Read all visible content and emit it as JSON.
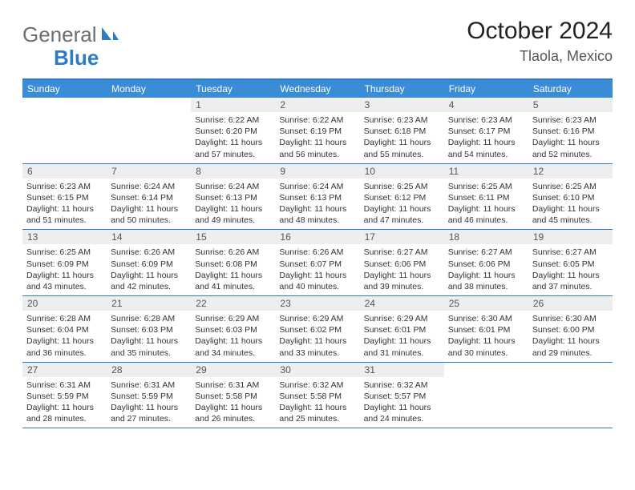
{
  "logo": {
    "text1": "General",
    "text2": "Blue",
    "color_gray": "#6b6f73",
    "color_blue": "#2d7bc4"
  },
  "title": {
    "month_year": "October 2024",
    "location": "Tlaola, Mexico"
  },
  "weekdays": [
    "Sunday",
    "Monday",
    "Tuesday",
    "Wednesday",
    "Thursday",
    "Friday",
    "Saturday"
  ],
  "colors": {
    "header_bar": "#3a8cd6",
    "border": "#2d7bc4",
    "daynum_bg": "#eceeef"
  },
  "weeks": [
    [
      {
        "empty": true
      },
      {
        "empty": true
      },
      {
        "num": "1",
        "sunrise": "Sunrise: 6:22 AM",
        "sunset": "Sunset: 6:20 PM",
        "daylight": "Daylight: 11 hours and 57 minutes."
      },
      {
        "num": "2",
        "sunrise": "Sunrise: 6:22 AM",
        "sunset": "Sunset: 6:19 PM",
        "daylight": "Daylight: 11 hours and 56 minutes."
      },
      {
        "num": "3",
        "sunrise": "Sunrise: 6:23 AM",
        "sunset": "Sunset: 6:18 PM",
        "daylight": "Daylight: 11 hours and 55 minutes."
      },
      {
        "num": "4",
        "sunrise": "Sunrise: 6:23 AM",
        "sunset": "Sunset: 6:17 PM",
        "daylight": "Daylight: 11 hours and 54 minutes."
      },
      {
        "num": "5",
        "sunrise": "Sunrise: 6:23 AM",
        "sunset": "Sunset: 6:16 PM",
        "daylight": "Daylight: 11 hours and 52 minutes."
      }
    ],
    [
      {
        "num": "6",
        "sunrise": "Sunrise: 6:23 AM",
        "sunset": "Sunset: 6:15 PM",
        "daylight": "Daylight: 11 hours and 51 minutes."
      },
      {
        "num": "7",
        "sunrise": "Sunrise: 6:24 AM",
        "sunset": "Sunset: 6:14 PM",
        "daylight": "Daylight: 11 hours and 50 minutes."
      },
      {
        "num": "8",
        "sunrise": "Sunrise: 6:24 AM",
        "sunset": "Sunset: 6:13 PM",
        "daylight": "Daylight: 11 hours and 49 minutes."
      },
      {
        "num": "9",
        "sunrise": "Sunrise: 6:24 AM",
        "sunset": "Sunset: 6:13 PM",
        "daylight": "Daylight: 11 hours and 48 minutes."
      },
      {
        "num": "10",
        "sunrise": "Sunrise: 6:25 AM",
        "sunset": "Sunset: 6:12 PM",
        "daylight": "Daylight: 11 hours and 47 minutes."
      },
      {
        "num": "11",
        "sunrise": "Sunrise: 6:25 AM",
        "sunset": "Sunset: 6:11 PM",
        "daylight": "Daylight: 11 hours and 46 minutes."
      },
      {
        "num": "12",
        "sunrise": "Sunrise: 6:25 AM",
        "sunset": "Sunset: 6:10 PM",
        "daylight": "Daylight: 11 hours and 45 minutes."
      }
    ],
    [
      {
        "num": "13",
        "sunrise": "Sunrise: 6:25 AM",
        "sunset": "Sunset: 6:09 PM",
        "daylight": "Daylight: 11 hours and 43 minutes."
      },
      {
        "num": "14",
        "sunrise": "Sunrise: 6:26 AM",
        "sunset": "Sunset: 6:09 PM",
        "daylight": "Daylight: 11 hours and 42 minutes."
      },
      {
        "num": "15",
        "sunrise": "Sunrise: 6:26 AM",
        "sunset": "Sunset: 6:08 PM",
        "daylight": "Daylight: 11 hours and 41 minutes."
      },
      {
        "num": "16",
        "sunrise": "Sunrise: 6:26 AM",
        "sunset": "Sunset: 6:07 PM",
        "daylight": "Daylight: 11 hours and 40 minutes."
      },
      {
        "num": "17",
        "sunrise": "Sunrise: 6:27 AM",
        "sunset": "Sunset: 6:06 PM",
        "daylight": "Daylight: 11 hours and 39 minutes."
      },
      {
        "num": "18",
        "sunrise": "Sunrise: 6:27 AM",
        "sunset": "Sunset: 6:06 PM",
        "daylight": "Daylight: 11 hours and 38 minutes."
      },
      {
        "num": "19",
        "sunrise": "Sunrise: 6:27 AM",
        "sunset": "Sunset: 6:05 PM",
        "daylight": "Daylight: 11 hours and 37 minutes."
      }
    ],
    [
      {
        "num": "20",
        "sunrise": "Sunrise: 6:28 AM",
        "sunset": "Sunset: 6:04 PM",
        "daylight": "Daylight: 11 hours and 36 minutes."
      },
      {
        "num": "21",
        "sunrise": "Sunrise: 6:28 AM",
        "sunset": "Sunset: 6:03 PM",
        "daylight": "Daylight: 11 hours and 35 minutes."
      },
      {
        "num": "22",
        "sunrise": "Sunrise: 6:29 AM",
        "sunset": "Sunset: 6:03 PM",
        "daylight": "Daylight: 11 hours and 34 minutes."
      },
      {
        "num": "23",
        "sunrise": "Sunrise: 6:29 AM",
        "sunset": "Sunset: 6:02 PM",
        "daylight": "Daylight: 11 hours and 33 minutes."
      },
      {
        "num": "24",
        "sunrise": "Sunrise: 6:29 AM",
        "sunset": "Sunset: 6:01 PM",
        "daylight": "Daylight: 11 hours and 31 minutes."
      },
      {
        "num": "25",
        "sunrise": "Sunrise: 6:30 AM",
        "sunset": "Sunset: 6:01 PM",
        "daylight": "Daylight: 11 hours and 30 minutes."
      },
      {
        "num": "26",
        "sunrise": "Sunrise: 6:30 AM",
        "sunset": "Sunset: 6:00 PM",
        "daylight": "Daylight: 11 hours and 29 minutes."
      }
    ],
    [
      {
        "num": "27",
        "sunrise": "Sunrise: 6:31 AM",
        "sunset": "Sunset: 5:59 PM",
        "daylight": "Daylight: 11 hours and 28 minutes."
      },
      {
        "num": "28",
        "sunrise": "Sunrise: 6:31 AM",
        "sunset": "Sunset: 5:59 PM",
        "daylight": "Daylight: 11 hours and 27 minutes."
      },
      {
        "num": "29",
        "sunrise": "Sunrise: 6:31 AM",
        "sunset": "Sunset: 5:58 PM",
        "daylight": "Daylight: 11 hours and 26 minutes."
      },
      {
        "num": "30",
        "sunrise": "Sunrise: 6:32 AM",
        "sunset": "Sunset: 5:58 PM",
        "daylight": "Daylight: 11 hours and 25 minutes."
      },
      {
        "num": "31",
        "sunrise": "Sunrise: 6:32 AM",
        "sunset": "Sunset: 5:57 PM",
        "daylight": "Daylight: 11 hours and 24 minutes."
      },
      {
        "empty": true
      },
      {
        "empty": true
      }
    ]
  ]
}
